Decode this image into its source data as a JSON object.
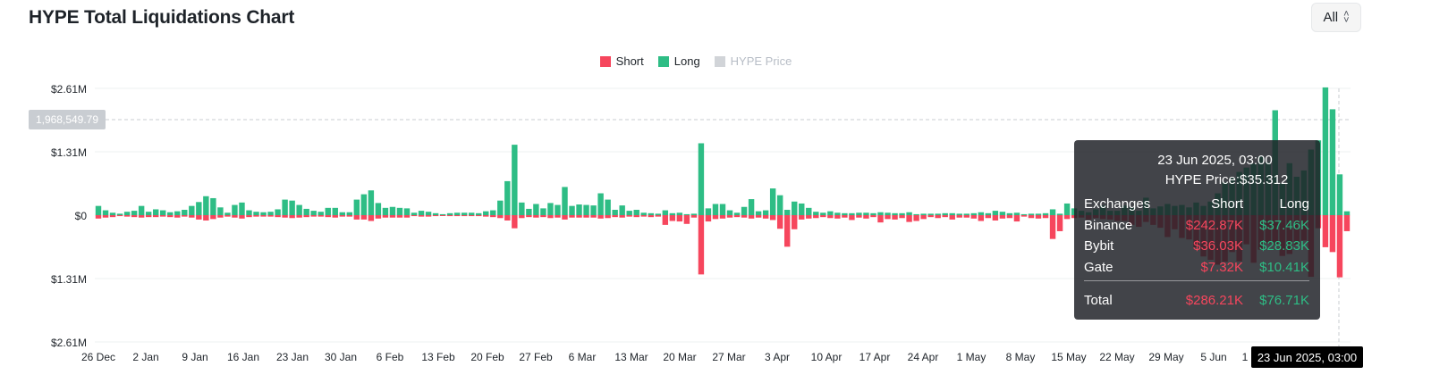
{
  "title": "HYPE Total Liquidations Chart",
  "range_select": {
    "value": "All",
    "icon": "updown-chevron-icon"
  },
  "legend": [
    {
      "label": "Short",
      "color": "#f6465d",
      "active": true
    },
    {
      "label": "Long",
      "color": "#2ebd85",
      "active": true
    },
    {
      "label": "HYPE Price",
      "color": "#d1d4d8",
      "active": false
    }
  ],
  "crosshair": {
    "y_label": "1,968,549.79",
    "x_label": "23 Jun 2025, 03:00"
  },
  "tooltip": {
    "datetime": "23 Jun 2025, 03:00",
    "price": "HYPE Price:$35.312",
    "headers": [
      "Exchanges",
      "Short",
      "Long"
    ],
    "rows": [
      {
        "exchange": "Binance",
        "short": "$242.87K",
        "long": "$37.46K"
      },
      {
        "exchange": "Bybit",
        "short": "$36.03K",
        "long": "$28.83K"
      },
      {
        "exchange": "Gate",
        "short": "$7.32K",
        "long": "$10.41K"
      }
    ],
    "total": {
      "label": "Total",
      "short": "$286.21K",
      "long": "$76.71K"
    }
  },
  "chart_data": {
    "type": "bar",
    "title": "HYPE Total Liquidations Chart",
    "y_ticks": [
      "$2.61M",
      "$1.31M",
      "$0",
      "$1.31M",
      "$2.61M"
    ],
    "ylim": [
      -2610000,
      2610000
    ],
    "x_ticks": [
      "26 Dec",
      "2 Jan",
      "9 Jan",
      "16 Jan",
      "23 Jan",
      "30 Jan",
      "6 Feb",
      "13 Feb",
      "20 Feb",
      "27 Feb",
      "6 Mar",
      "13 Mar",
      "20 Mar",
      "27 Mar",
      "3 Apr",
      "10 Apr",
      "17 Apr",
      "24 Apr",
      "1 May",
      "8 May",
      "15 May",
      "22 May",
      "29 May",
      "5 Jun",
      "1"
    ],
    "grid": true,
    "legend_position": "top-center",
    "series": [
      {
        "name": "Long",
        "color": "#2ebd85",
        "values": [
          0.19,
          0.1,
          0.05,
          0.03,
          0.07,
          0.09,
          0.19,
          0.07,
          0.12,
          0.1,
          0.06,
          0.08,
          0.11,
          0.19,
          0.27,
          0.39,
          0.35,
          0.16,
          0.05,
          0.21,
          0.26,
          0.1,
          0.07,
          0.06,
          0.07,
          0.12,
          0.32,
          0.3,
          0.21,
          0.13,
          0.09,
          0.07,
          0.15,
          0.15,
          0.06,
          0.06,
          0.32,
          0.43,
          0.51,
          0.25,
          0.15,
          0.17,
          0.15,
          0.14,
          0.05,
          0.09,
          0.07,
          0.04,
          0.02,
          0.04,
          0.05,
          0.05,
          0.05,
          0.04,
          0.08,
          0.1,
          0.3,
          0.7,
          1.45,
          0.26,
          0.13,
          0.23,
          0.14,
          0.25,
          0.21,
          0.58,
          0.19,
          0.22,
          0.21,
          0.2,
          0.45,
          0.32,
          0.11,
          0.2,
          0.09,
          0.11,
          0.05,
          0.04,
          0.03,
          0.1,
          0.04,
          0.05,
          0.02,
          0.03,
          1.48,
          0.14,
          0.23,
          0.23,
          0.1,
          0.05,
          0.17,
          0.33,
          0.08,
          0.1,
          0.55,
          0.41,
          0.11,
          0.28,
          0.24,
          0.15,
          0.07,
          0.05,
          0.08,
          0.05,
          0.04,
          0.04,
          0.05,
          0.05,
          0.04,
          0.06,
          0.05,
          0.04,
          0.04,
          0.06,
          0.02,
          0.03,
          0.03,
          0.03,
          0.04,
          0.04,
          0.03,
          0.03,
          0.04,
          0.06,
          0.04,
          0.09,
          0.07,
          0.04,
          0.05,
          0.02,
          0.03,
          0.03,
          0.04,
          0.12,
          0.03,
          0.24,
          0.14,
          0.09,
          0.06,
          0.12,
          0.2,
          0.09,
          0.09,
          0.2,
          0.16,
          0.09,
          0.36,
          0.14,
          0.18,
          0.23,
          0.19,
          0.21,
          0.16,
          0.26,
          0.19,
          0.28,
          0.45,
          0.68,
          0.78,
          0.89,
          0.98,
          1.06,
          1.21,
          1.09,
          2.16,
          0.66,
          1.07,
          0.79,
          0.92,
          1.35,
          1.54,
          2.63,
          2.18,
          0.84,
          0.08
        ]
      },
      {
        "name": "Short",
        "color": "#f6465d",
        "values": [
          0.07,
          0.05,
          0.04,
          0.02,
          0.03,
          0.04,
          0.05,
          0.04,
          0.04,
          0.03,
          0.04,
          0.05,
          0.03,
          0.05,
          0.09,
          0.11,
          0.08,
          0.05,
          0.03,
          0.05,
          0.07,
          0.04,
          0.03,
          0.03,
          0.03,
          0.04,
          0.05,
          0.06,
          0.05,
          0.04,
          0.03,
          0.03,
          0.04,
          0.05,
          0.03,
          0.03,
          0.09,
          0.09,
          0.12,
          0.07,
          0.05,
          0.05,
          0.05,
          0.05,
          0.02,
          0.03,
          0.03,
          0.02,
          0.01,
          0.02,
          0.02,
          0.02,
          0.02,
          0.02,
          0.03,
          0.04,
          0.06,
          0.11,
          0.27,
          0.06,
          0.04,
          0.05,
          0.04,
          0.06,
          0.05,
          0.09,
          0.05,
          0.05,
          0.05,
          0.05,
          0.07,
          0.06,
          0.04,
          0.05,
          0.03,
          0.04,
          0.03,
          0.04,
          0.03,
          0.2,
          0.12,
          0.13,
          0.18,
          0.05,
          1.22,
          0.13,
          0.08,
          0.07,
          0.05,
          0.04,
          0.05,
          0.07,
          0.05,
          0.07,
          0.1,
          0.28,
          0.65,
          0.29,
          0.09,
          0.07,
          0.06,
          0.04,
          0.06,
          0.07,
          0.05,
          0.1,
          0.05,
          0.07,
          0.04,
          0.15,
          0.08,
          0.09,
          0.06,
          0.14,
          0.12,
          0.08,
          0.04,
          0.06,
          0.04,
          0.09,
          0.05,
          0.05,
          0.07,
          0.12,
          0.06,
          0.11,
          0.07,
          0.06,
          0.13,
          0.03,
          0.06,
          0.07,
          0.06,
          0.49,
          0.33,
          0.08,
          0.06,
          0.05,
          0.09,
          0.06,
          0.08,
          0.09,
          0.12,
          0.12,
          0.2,
          0.24,
          0.14,
          0.2,
          0.26,
          0.45,
          0.29,
          0.47,
          0.5,
          0.66,
          0.85,
          0.92,
          1.02,
          0.96,
          0.76,
          0.95,
          0.6,
          0.98,
          0.71,
          0.58,
          0.6,
          0.84,
          0.8,
          0.61,
          0.52,
          1.27,
          0.27,
          0.66,
          0.76,
          1.28,
          0.33
        ]
      }
    ],
    "unit": "$M"
  }
}
